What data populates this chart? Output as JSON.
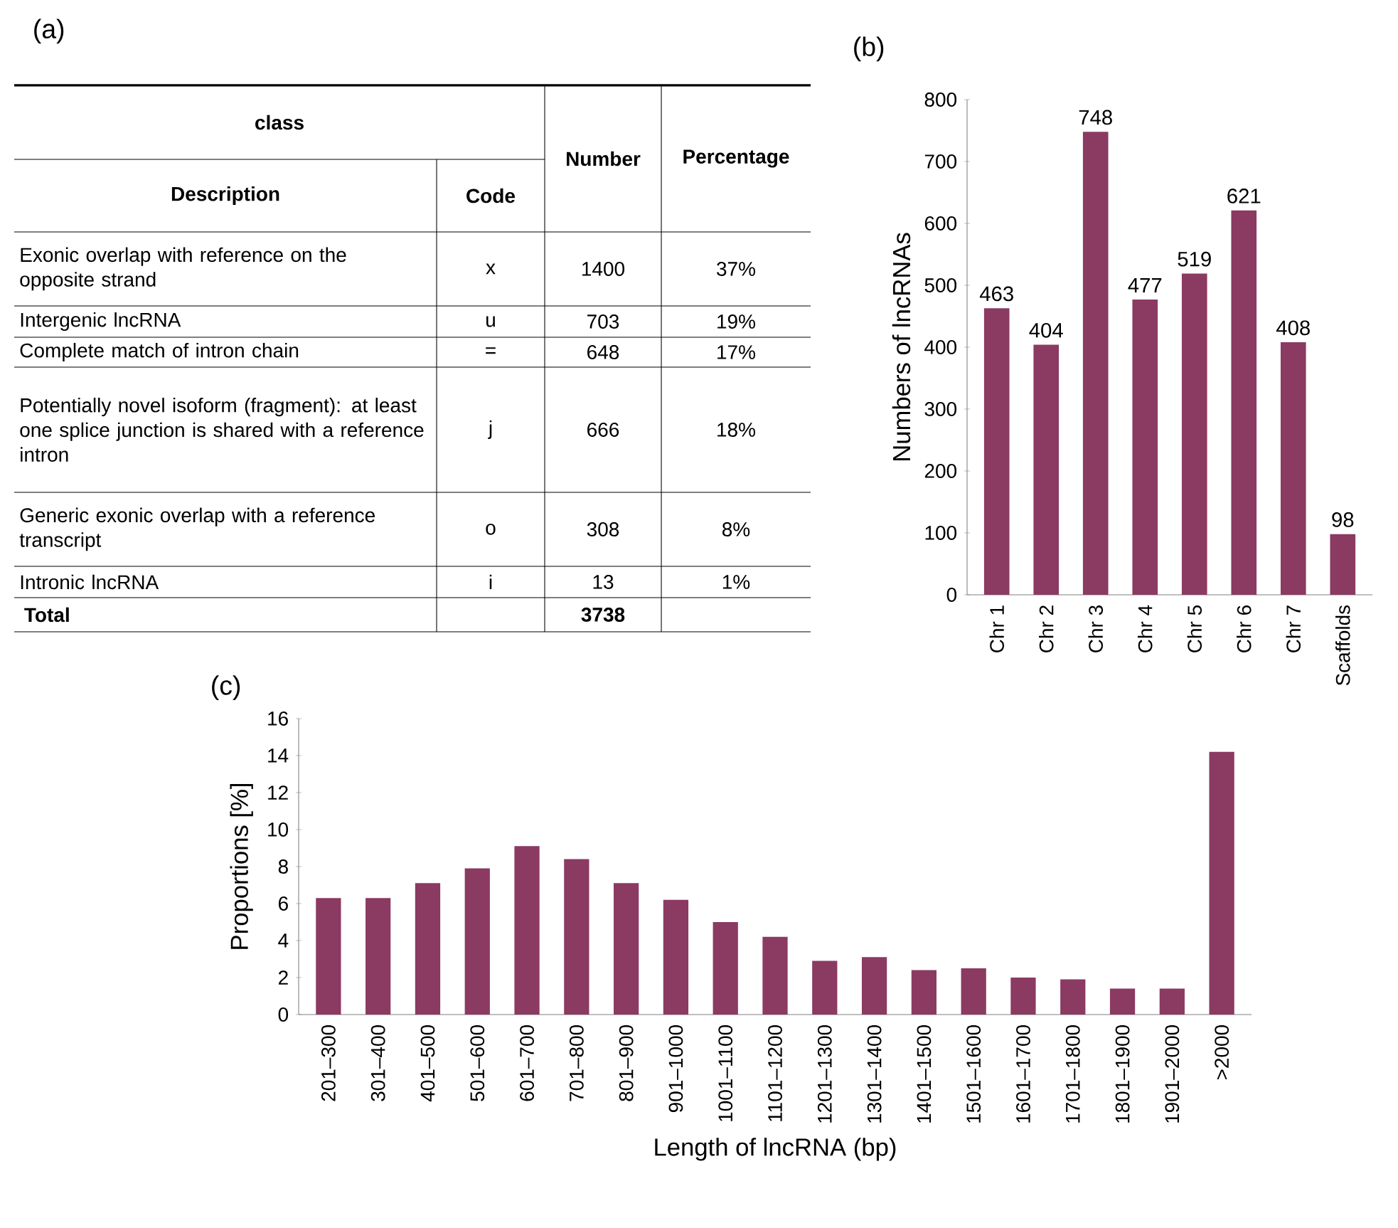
{
  "chart_data": [
    {
      "type": "other",
      "title": "(a)",
      "categories": [
        "Exonic overlap with reference on the opposite strand",
        "Intergenic lncRNA",
        "Complete match of intron chain",
        "Potentially novel isoform (fragment): at least one splice junction is shared with a reference intron",
        "Generic exonic overlap with a reference transcript",
        "Intronic lncRNA"
      ],
      "values": [
        1400,
        703,
        648,
        666,
        308,
        13
      ],
      "data_labels": true,
      "annotations": [
        "class",
        "Description",
        "Code",
        "Number",
        "Percentage",
        "x",
        "u",
        "=",
        "j",
        "o",
        "i",
        "37%",
        "19%",
        "17%",
        "18%",
        "8%",
        "1%",
        "Total",
        "3738"
      ]
    },
    {
      "type": "bar",
      "title": "(b)",
      "ylabel": "Numbers of lncRNAs",
      "categories": [
        "Chr 1",
        "Chr 2",
        "Chr 3",
        "Chr 4",
        "Chr 5",
        "Chr 6",
        "Chr 7",
        "Scaffolds"
      ],
      "values": [
        463,
        404,
        748,
        477,
        519,
        621,
        408,
        98
      ],
      "color": "#8b3a62",
      "data_labels": true,
      "ylim": [
        0,
        800
      ],
      "yticks": [
        0,
        100,
        200,
        300,
        400,
        500,
        600,
        700,
        800
      ]
    },
    {
      "type": "bar",
      "title": "(c)",
      "xlabel": "Length of lncRNA (bp)",
      "ylabel": "Proportions [%]",
      "categories": [
        "201–300",
        "301–400",
        "401–500",
        "501–600",
        "601–700",
        "701–800",
        "801–900",
        "901–1000",
        "1001–1100",
        "1101–1200",
        "1201–1300",
        "1301–1400",
        "1401–1500",
        "1501–1600",
        "1601–1700",
        "1701–1800",
        "1801–1900",
        "1901–2000",
        ">2000"
      ],
      "values": [
        6.3,
        6.3,
        7.1,
        7.9,
        9.1,
        8.4,
        7.1,
        6.2,
        5.0,
        4.2,
        2.9,
        3.1,
        2.4,
        2.5,
        2.0,
        1.9,
        1.4,
        1.4,
        14.2
      ],
      "color": "#8b3a62",
      "ylim": [
        0,
        16
      ],
      "yticks": [
        0,
        2,
        4,
        6,
        8,
        10,
        12,
        14,
        16
      ]
    }
  ]
}
